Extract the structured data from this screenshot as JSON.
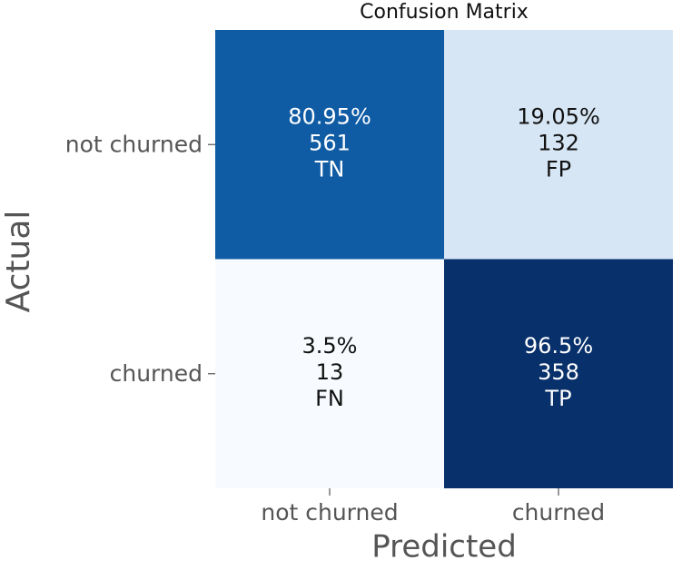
{
  "chart_data": {
    "type": "heatmap",
    "title": "Confusion Matrix",
    "x_label": "Predicted",
    "y_label": "Actual",
    "x_categories": [
      "not churned",
      "churned"
    ],
    "y_categories": [
      "not churned",
      "churned"
    ],
    "values": [
      [
        80.95,
        19.05
      ],
      [
        3.5,
        96.5
      ]
    ],
    "value_labels": [
      [
        "80.95%",
        "19.05%"
      ],
      [
        "3.5%",
        "96.5%"
      ]
    ],
    "counts": [
      [
        561,
        132
      ],
      [
        13,
        358
      ]
    ],
    "cell_labels": [
      [
        "TN",
        "FP"
      ],
      [
        "FN",
        "TP"
      ]
    ],
    "colormap": [
      "#f7fbff",
      "#deebf7",
      "#c6dbef",
      "#9ecae1",
      "#6baed6",
      "#4292c6",
      "#2171b5",
      "#08519c",
      "#08306b"
    ]
  }
}
